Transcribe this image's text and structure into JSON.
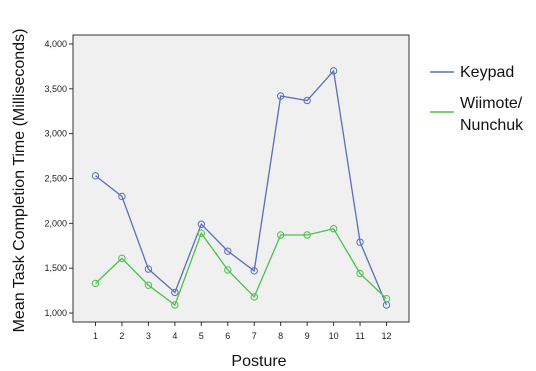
{
  "chart_data": {
    "type": "line",
    "title": "",
    "xlabel": "Posture",
    "ylabel": "Mean Task Completion Time (Milliseconds)",
    "x": [
      1,
      2,
      3,
      4,
      5,
      6,
      7,
      8,
      9,
      10,
      11,
      12
    ],
    "x_tick_labels": [
      "1",
      "2",
      "3",
      "4",
      "5",
      "6",
      "7",
      "8",
      "9",
      "10",
      "11",
      "12"
    ],
    "ylim": [
      900,
      4100
    ],
    "y_ticks": [
      1000,
      1500,
      2000,
      2500,
      3000,
      3500,
      4000
    ],
    "y_tick_labels": [
      "1,000",
      "1,500",
      "2,000",
      "2,500",
      "3,000",
      "3,500",
      "4,000"
    ],
    "grid": false,
    "plot_background": "#f0f0f0",
    "legend_position": "right",
    "series": [
      {
        "name": "Keypad",
        "color": "#5a6fb5",
        "marker": "open-circle",
        "values": [
          2530,
          2300,
          1490,
          1230,
          1990,
          1690,
          1470,
          3420,
          3370,
          3700,
          1790,
          1090
        ]
      },
      {
        "name_lines": [
          "Wiimote/",
          "Nunchuk"
        ],
        "color": "#4cc04c",
        "marker": "open-circle",
        "values": [
          1330,
          1610,
          1310,
          1090,
          1890,
          1480,
          1180,
          1870,
          1870,
          1940,
          1440,
          1160
        ]
      }
    ]
  }
}
